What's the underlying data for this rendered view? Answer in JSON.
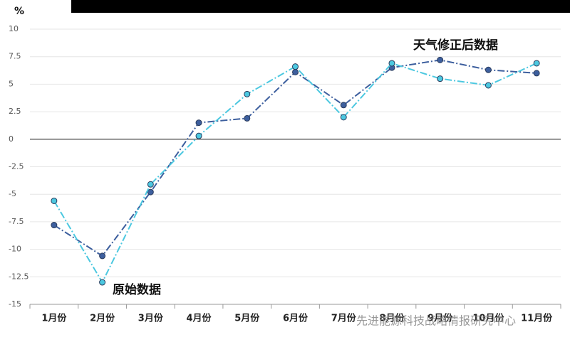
{
  "chart_data": {
    "type": "line",
    "y_unit": "%",
    "categories": [
      "1月份",
      "2月份",
      "3月份",
      "4月份",
      "5月份",
      "6月份",
      "7月份",
      "8月份",
      "9月份",
      "10月份",
      "11月份"
    ],
    "series": [
      {
        "name": "天气修正后数据",
        "color": "#3d5f9e",
        "values": [
          -7.8,
          -10.6,
          -4.8,
          1.5,
          1.9,
          6.1,
          3.1,
          6.5,
          7.2,
          6.3,
          6.0
        ]
      },
      {
        "name": "原始数据",
        "color": "#4cc8e0",
        "values": [
          -5.6,
          -13.0,
          -4.1,
          0.3,
          4.1,
          6.6,
          2.0,
          6.9,
          5.5,
          4.9,
          6.9
        ]
      }
    ],
    "ylim": [
      -15,
      10
    ],
    "yticks": [
      10,
      7.5,
      5,
      2.5,
      0,
      -2.5,
      -5,
      -7.5,
      -10,
      -12.5,
      -15
    ],
    "grid": true,
    "watermark": "先进能源科技战略情报研究中心"
  }
}
